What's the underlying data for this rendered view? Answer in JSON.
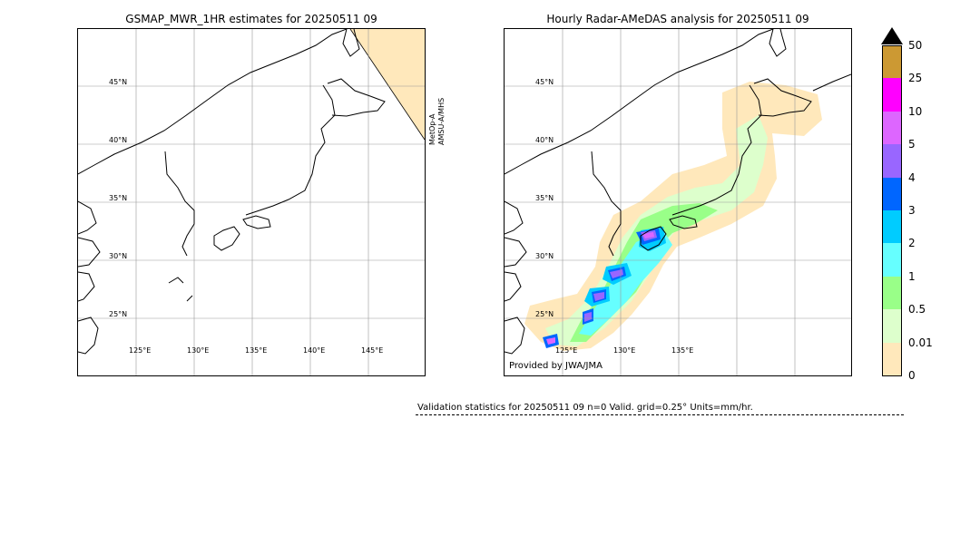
{
  "left_panel": {
    "title": "GSMAP_MWR_1HR estimates for 20250511 09",
    "satellite_label": "MetOp-A AMSU-A/MHS",
    "lat_labels": [
      "45°N",
      "40°N",
      "35°N",
      "30°N",
      "25°N"
    ],
    "lon_labels": [
      "125°E",
      "130°E",
      "135°E",
      "140°E",
      "145°E"
    ]
  },
  "right_panel": {
    "title": "Hourly Radar-AMeDAS analysis for 20250511 09",
    "provided_by": "Provided by JWA/JMA",
    "lat_labels": [
      "45°N",
      "40°N",
      "35°N",
      "30°N",
      "25°N"
    ],
    "lon_labels": [
      "125°E",
      "130°E",
      "135°E"
    ]
  },
  "colorbar": {
    "labels": [
      "50",
      "25",
      "10",
      "5",
      "4",
      "3",
      "2",
      "1",
      "0.5",
      "0.01",
      "0"
    ],
    "colors": [
      "#cc9933",
      "#ff00ff",
      "#dd66ff",
      "#9966ff",
      "#0066ff",
      "#00ccff",
      "#66ffff",
      "#99ff88",
      "#ddffcc",
      "#ffe8bb"
    ],
    "extend_color": "#000000"
  },
  "validation": {
    "text": "Validation statistics for 20250511 09  n=0 Valid. grid=0.25° Units=mm/hr."
  }
}
